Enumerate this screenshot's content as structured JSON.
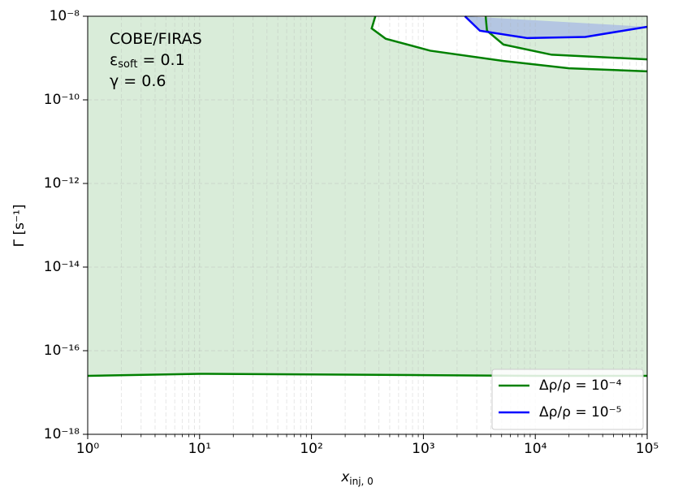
{
  "chart_data": {
    "type": "contour",
    "annotations": [
      {
        "text": "COBE/FIRAS"
      },
      {
        "text": "ε",
        "sub": "soft",
        "rest": " = 0.1"
      },
      {
        "text": "γ = 0.6"
      }
    ],
    "xlabel": "x",
    "xlabel_sub": "inj, 0",
    "ylabel": "Γ [s⁻¹]",
    "xscale": "log",
    "yscale": "log",
    "xlim": [
      1,
      100000
    ],
    "ylim": [
      1e-18,
      1e-08
    ],
    "xticks": [
      {
        "value": 1,
        "label": "10⁰"
      },
      {
        "value": 10,
        "label": "10¹"
      },
      {
        "value": 100,
        "label": "10²"
      },
      {
        "value": 1000,
        "label": "10³"
      },
      {
        "value": 10000,
        "label": "10⁴"
      },
      {
        "value": 100000,
        "label": "10⁵"
      }
    ],
    "yticks": [
      {
        "value": 1e-18,
        "label": "10⁻¹⁸"
      },
      {
        "value": 1e-16,
        "label": "10⁻¹⁶"
      },
      {
        "value": 1e-14,
        "label": "10⁻¹⁴"
      },
      {
        "value": 1e-12,
        "label": "10⁻¹²"
      },
      {
        "value": 1e-10,
        "label": "10⁻¹⁰"
      },
      {
        "value": 1e-08,
        "label": "10⁻⁸"
      }
    ],
    "grid": true,
    "legend": "lower right",
    "series": [
      {
        "name": "Δρ/ρ = 10⁻⁴",
        "color": "#008000",
        "fill": "#d9ecd9",
        "x": [
          372,
          345,
          460,
          1150,
          5200,
          20000,
          100000,
          null,
          3600,
          3700,
          5200,
          14000,
          100000,
          null,
          1,
          10,
          100,
          1000,
          10000,
          100000
        ],
        "values": [
          1e-08,
          5.1e-09,
          2.9e-09,
          1.5e-09,
          8.5e-10,
          5.7e-10,
          4.8e-10,
          null,
          1e-08,
          4.5e-09,
          2.1e-09,
          1.2e-09,
          9.3e-10,
          null,
          2.5e-17,
          2.8e-17,
          2.7e-17,
          2.6e-17,
          2.5e-17,
          2.5e-17
        ]
      },
      {
        "name": "Δρ/ρ = 10⁻⁵",
        "color": "#0000ff",
        "fill": "#b4c6e2",
        "x": [
          2350,
          3200,
          8500,
          28000,
          100000
        ],
        "values": [
          1e-08,
          4.5e-09,
          3e-09,
          3.2e-09,
          5.6e-09
        ]
      }
    ]
  }
}
